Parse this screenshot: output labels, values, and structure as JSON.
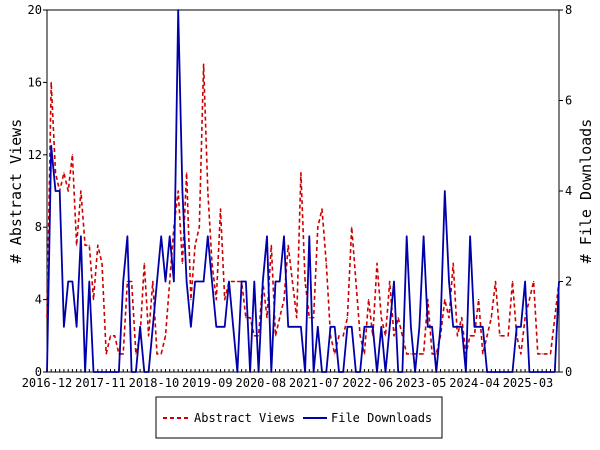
{
  "chart_data": {
    "type": "line",
    "x_tick_labels": [
      "2016-12",
      "2017-11",
      "2018-10",
      "2019-09",
      "2020-08",
      "2021-07",
      "2022-06",
      "2023-05",
      "2024-04",
      "2025-03"
    ],
    "y_left": {
      "label": "# Abstract Views",
      "ylim": [
        0,
        20
      ],
      "ticks": [
        0,
        4,
        8,
        12,
        16,
        20
      ]
    },
    "y_right": {
      "label": "# File Downloads",
      "ylim": [
        0,
        8
      ],
      "ticks": [
        0,
        2,
        4,
        6,
        8
      ]
    },
    "grid": false,
    "legend_position": "bottom-center",
    "series": [
      {
        "name": "Abstract Views",
        "axis": "left",
        "color": "#cc0000",
        "style": "dashed",
        "values": [
          3,
          16,
          11,
          10,
          11,
          10,
          12,
          7,
          10,
          7,
          7,
          4,
          7,
          6,
          1,
          2,
          2,
          1,
          1,
          5,
          5,
          1,
          2,
          6,
          2,
          5,
          1,
          1,
          2,
          5,
          8,
          10,
          6,
          11,
          4,
          7,
          8,
          17,
          10,
          6,
          4,
          9,
          4,
          5,
          5,
          5,
          5,
          3,
          3,
          2,
          2,
          5,
          3,
          7,
          2,
          3,
          4,
          7,
          5,
          3,
          11,
          5,
          3,
          3,
          8,
          9,
          6,
          2,
          1,
          2,
          2,
          3,
          8,
          5,
          2,
          1,
          4,
          2,
          6,
          3,
          2,
          5,
          2,
          3,
          2,
          1,
          1,
          1,
          1,
          1,
          4,
          1,
          1,
          2,
          4,
          3,
          6,
          2,
          3,
          1,
          2,
          2,
          4,
          1,
          2,
          3,
          5,
          2,
          2,
          2,
          5,
          2,
          1,
          3,
          4,
          5,
          1,
          1,
          1,
          1,
          3,
          5
        ]
      },
      {
        "name": "File Downloads",
        "axis": "right",
        "color": "#0000aa",
        "style": "solid",
        "values": [
          0,
          5,
          4,
          4,
          1,
          2,
          2,
          1,
          3,
          0,
          2,
          0,
          0,
          0,
          0,
          0,
          0,
          0,
          2,
          3,
          0,
          0,
          1,
          0,
          0,
          1,
          2,
          3,
          2,
          3,
          2,
          8,
          4,
          2,
          1,
          2,
          2,
          2,
          3,
          2,
          1,
          1,
          1,
          2,
          1,
          0,
          2,
          2,
          0,
          2,
          0,
          2,
          3,
          0,
          2,
          2,
          3,
          1,
          1,
          1,
          1,
          0,
          3,
          0,
          1,
          0,
          0,
          1,
          1,
          0,
          0,
          1,
          1,
          0,
          0,
          1,
          1,
          1,
          0,
          1,
          0,
          1,
          2,
          0,
          0,
          3,
          1,
          0,
          1,
          3,
          1,
          1,
          0,
          1,
          4,
          2,
          1,
          1,
          1,
          0,
          3,
          1,
          1,
          1,
          0,
          0,
          0,
          0,
          0,
          0,
          0,
          1,
          1,
          2,
          0,
          0,
          0,
          0,
          0,
          0,
          0,
          2
        ]
      }
    ]
  }
}
